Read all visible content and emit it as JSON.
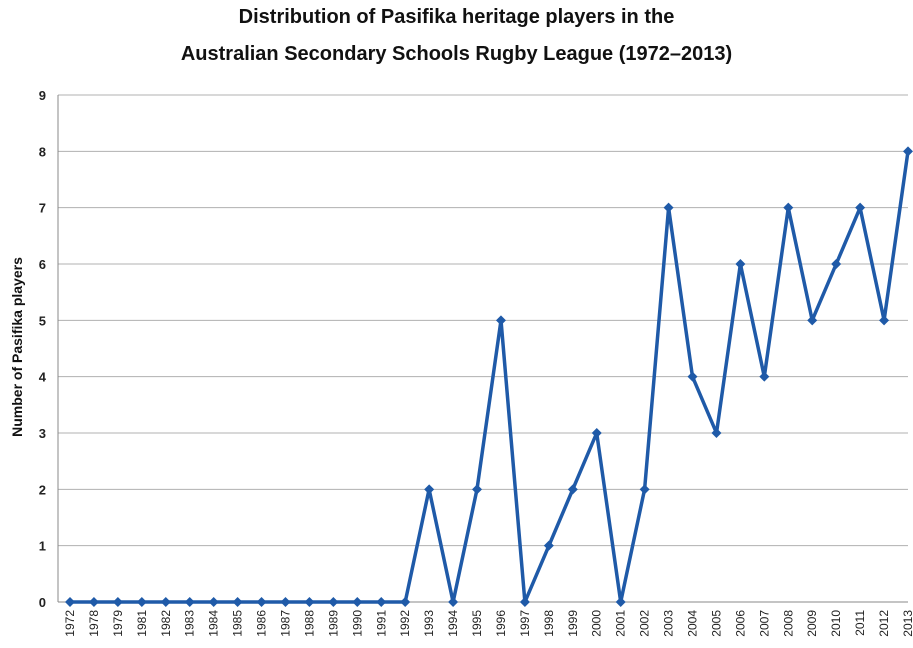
{
  "chart_data": {
    "type": "line",
    "title_line1": "Distribution of Pasifika heritage players in the",
    "title_line2": "Australian Secondary Schools Rugby League (1972–2013)",
    "xlabel": "",
    "ylabel": "Number of Pasifika players",
    "ylim": [
      0,
      9
    ],
    "yticks": [
      0,
      1,
      2,
      3,
      4,
      5,
      6,
      7,
      8,
      9
    ],
    "grid": true,
    "legend": "none",
    "color": "#1f5aa8",
    "categories": [
      "1972",
      "1978",
      "1979",
      "1981",
      "1982",
      "1983",
      "1984",
      "1985",
      "1986",
      "1987",
      "1988",
      "1989",
      "1990",
      "1991",
      "1992",
      "1993",
      "1994",
      "1995",
      "1996",
      "1997",
      "1998",
      "1999",
      "2000",
      "2001",
      "2002",
      "2003",
      "2004",
      "2005",
      "2006",
      "2007",
      "2008",
      "2009",
      "2010",
      "2011",
      "2012",
      "2013"
    ],
    "values": [
      0,
      0,
      0,
      0,
      0,
      0,
      0,
      0,
      0,
      0,
      0,
      0,
      0,
      0,
      0,
      2,
      0,
      2,
      5,
      0,
      1,
      2,
      3,
      0,
      2,
      7,
      4,
      3,
      6,
      4,
      7,
      5,
      6,
      7,
      5,
      8
    ]
  }
}
